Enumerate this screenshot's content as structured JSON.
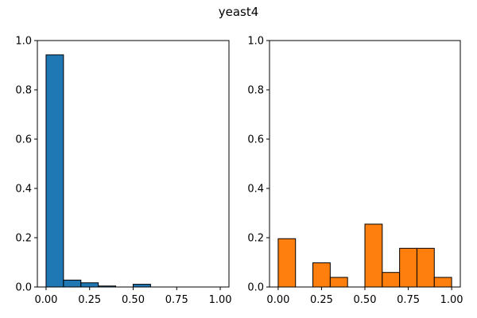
{
  "chart_data": {
    "type": "bar",
    "title": "yeast4",
    "panels": [
      {
        "name": "",
        "color": "#1f77b4",
        "xlim": [
          -0.05,
          1.05
        ],
        "ylim": [
          0,
          1.0
        ],
        "xticks": [
          0.0,
          0.25,
          0.5,
          0.75,
          1.0
        ],
        "xtick_labels": [
          "0.00",
          "0.25",
          "0.50",
          "0.75",
          "1.00"
        ],
        "yticks": [
          0.0,
          0.2,
          0.4,
          0.6,
          0.8,
          1.0
        ],
        "ytick_labels": [
          "0.0",
          "0.2",
          "0.4",
          "0.6",
          "0.8",
          "1.0"
        ],
        "bin_edges": [
          0.0,
          0.1,
          0.2,
          0.3,
          0.4,
          0.5,
          0.6,
          0.7,
          0.8,
          0.9,
          1.0
        ],
        "values": [
          0.942,
          0.028,
          0.017,
          0.004,
          0.0,
          0.011,
          0.0,
          0.0,
          0.0,
          0.0
        ]
      },
      {
        "name": "",
        "color": "#ff7f0e",
        "xlim": [
          -0.05,
          1.05
        ],
        "ylim": [
          0,
          1.0
        ],
        "xticks": [
          0.0,
          0.25,
          0.5,
          0.75,
          1.0
        ],
        "xtick_labels": [
          "0.00",
          "0.25",
          "0.50",
          "0.75",
          "1.00"
        ],
        "yticks": [
          0.0,
          0.2,
          0.4,
          0.6,
          0.8,
          1.0
        ],
        "ytick_labels": [
          "0.0",
          "0.2",
          "0.4",
          "0.6",
          "0.8",
          "1.0"
        ],
        "bin_edges": [
          0.0,
          0.1,
          0.2,
          0.3,
          0.4,
          0.5,
          0.6,
          0.7,
          0.8,
          0.9,
          1.0
        ],
        "values": [
          0.196,
          0.0,
          0.098,
          0.039,
          0.0,
          0.255,
          0.059,
          0.157,
          0.157,
          0.039
        ]
      }
    ]
  }
}
